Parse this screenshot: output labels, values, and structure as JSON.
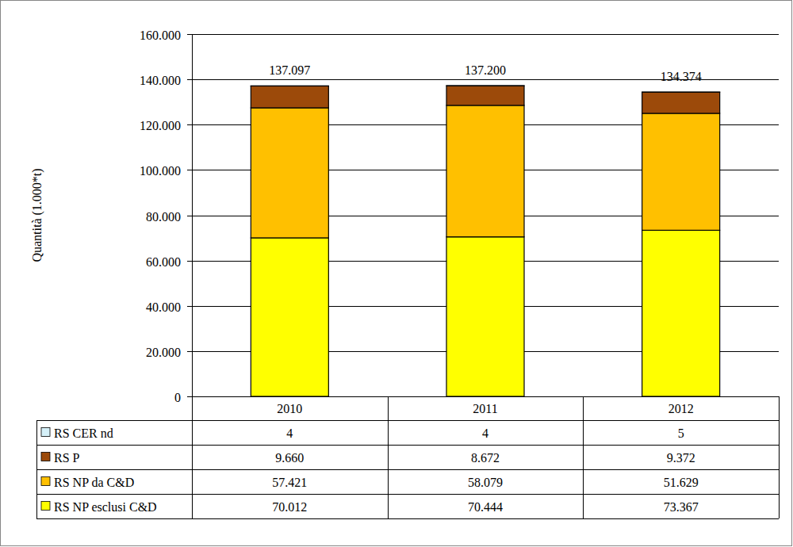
{
  "chart_data": {
    "type": "bar",
    "stacked": true,
    "grid": true,
    "y_label": "Quantità (1.000*t)",
    "categories": [
      "2010",
      "2011",
      "2012"
    ],
    "ylim": [
      0,
      160000
    ],
    "yticks": [
      0,
      {
        "value": 20000,
        "label": "20.000"
      },
      {
        "value": 40000,
        "label": "40.000"
      },
      {
        "value": 60000,
        "label": "60.000"
      },
      {
        "value": 80000,
        "label": "80.000"
      },
      {
        "value": 100000,
        "label": "100.000"
      },
      {
        "value": 120000,
        "label": "120.000"
      },
      {
        "value": 140000,
        "label": "140.000"
      },
      {
        "value": 160000,
        "label": "160.000"
      }
    ],
    "series": [
      {
        "name": "RS NP esclusi C&D",
        "color": "#ffff00",
        "values": [
          70012,
          70444,
          73367
        ],
        "value_labels": [
          "70.012",
          "70.444",
          "73.367"
        ]
      },
      {
        "name": "RS NP da C&D",
        "color": "#ffc000",
        "values": [
          57421,
          58079,
          51629
        ],
        "value_labels": [
          "57.421",
          "58.079",
          "51.629"
        ]
      },
      {
        "name": "RS P",
        "color": "#9c4a0a",
        "values": [
          9660,
          8672,
          9372
        ],
        "value_labels": [
          "9.660",
          "8.672",
          "9.372"
        ]
      },
      {
        "name": "RS CER nd",
        "color": "#d5f0f8",
        "values": [
          4,
          4,
          5
        ],
        "value_labels": [
          "4",
          "4",
          "5"
        ]
      }
    ],
    "totals": {
      "values": [
        137097,
        137200,
        134374
      ],
      "value_labels": [
        "137.097",
        "137.200",
        "134.374"
      ]
    }
  }
}
